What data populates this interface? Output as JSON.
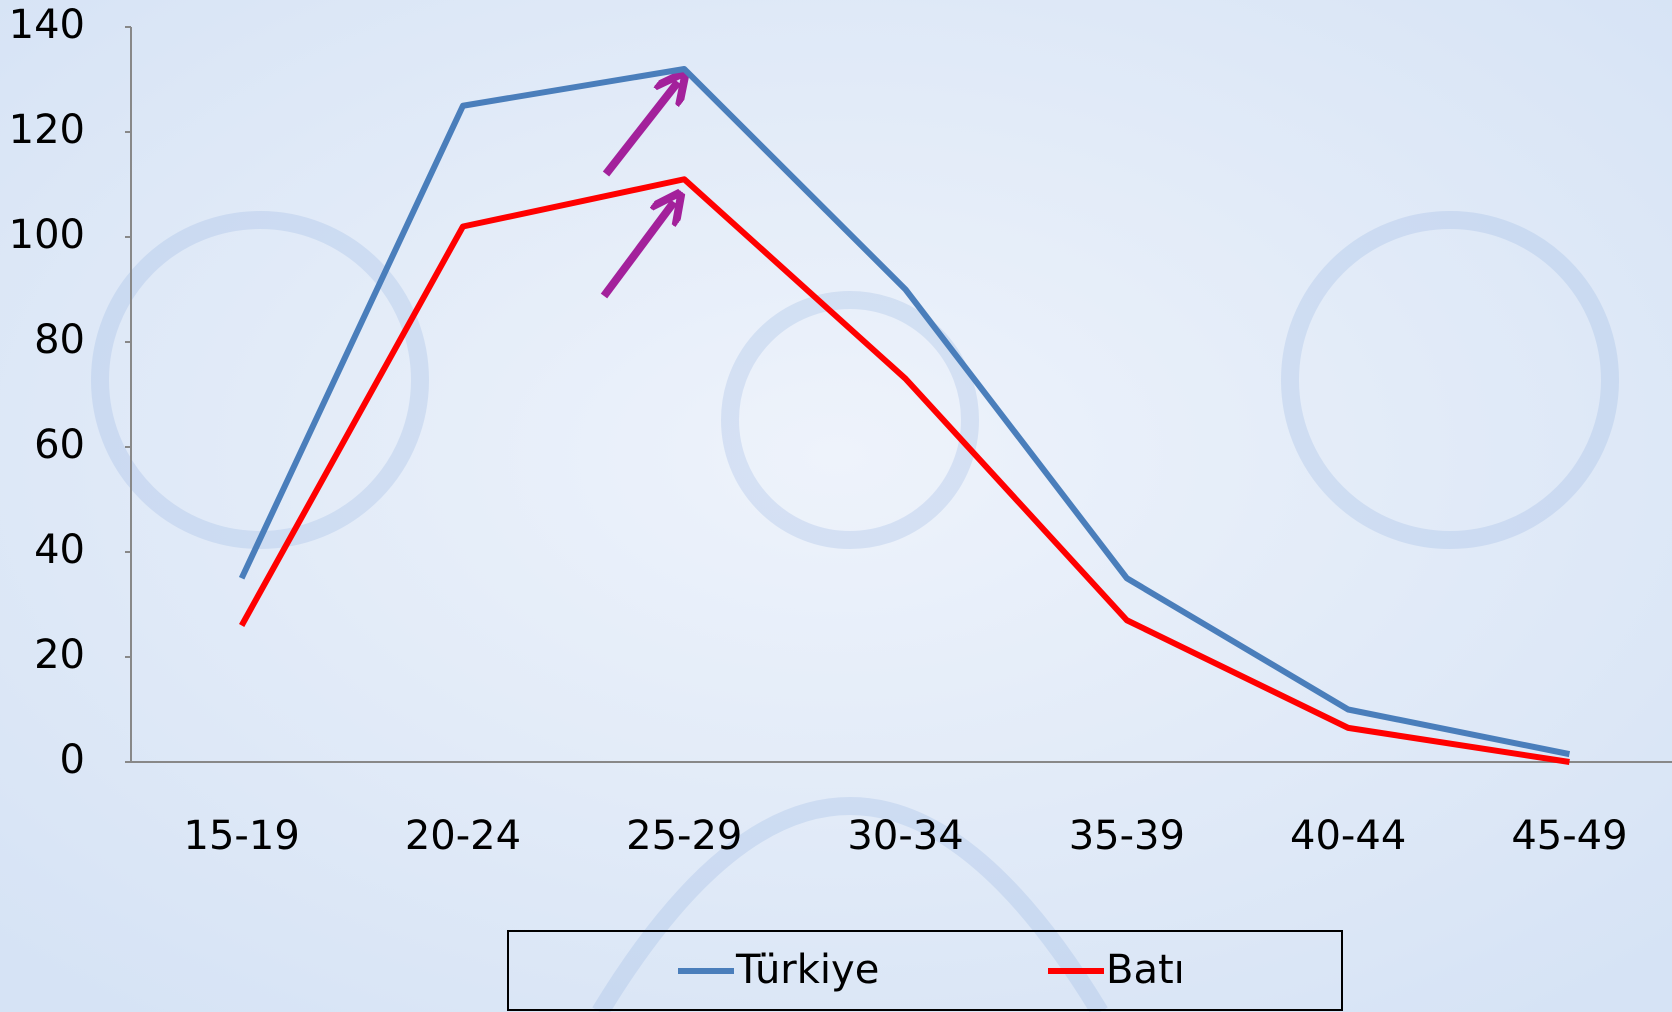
{
  "chart_data": {
    "type": "line",
    "categories": [
      "15-19",
      "20-24",
      "25-29",
      "30-34",
      "35-39",
      "40-44",
      "45-49"
    ],
    "series": [
      {
        "name": "Türkiye",
        "color": "#4a7ebb",
        "values": [
          35,
          125,
          132,
          90,
          35,
          10,
          1.5
        ]
      },
      {
        "name": "Batı",
        "color": "#ff0000",
        "values": [
          26,
          102,
          111,
          73,
          27,
          6.5,
          0
        ]
      }
    ],
    "ylim": [
      0,
      140
    ],
    "yticks": [
      0,
      20,
      40,
      60,
      80,
      100,
      120,
      140
    ],
    "grid": false,
    "legend": "bottom"
  }
}
